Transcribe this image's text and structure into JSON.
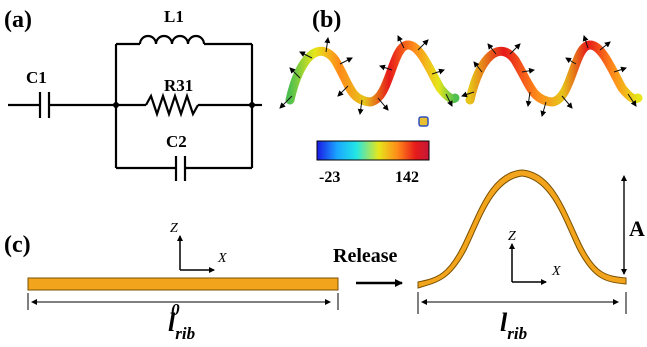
{
  "panels": {
    "a": "(a)",
    "b": "(b)",
    "c": "(c)"
  },
  "circuit": {
    "c1": "C1",
    "l1": "L1",
    "r31": "R31",
    "c2": "C2"
  },
  "colorbar": {
    "min": "-23",
    "max": "142",
    "colors": [
      "#1a1ae6",
      "#1aa6ff",
      "#22e6e6",
      "#e6e61a",
      "#ff8a1a",
      "#e61a1a",
      "#c4183a"
    ]
  },
  "axes": {
    "z": "Z",
    "x": "X"
  },
  "schematic": {
    "release": "Release",
    "amplitude": "A",
    "flat_length": {
      "base": "l",
      "sup": "0",
      "sub": "rib"
    },
    "buckled_length": {
      "base": "l",
      "sub": "rib"
    },
    "ribbon_color": "#f2a51c"
  }
}
